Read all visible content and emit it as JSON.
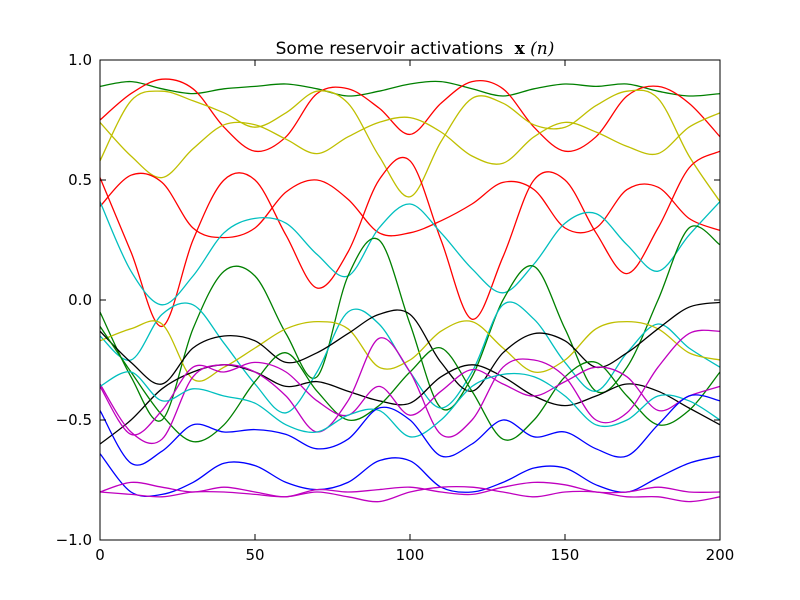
{
  "chart_data": {
    "type": "line",
    "title": "Some reservoir activations",
    "title_math": "x",
    "title_math_arg": "(n)",
    "xlabel": "",
    "ylabel": "",
    "xlim": [
      0,
      200
    ],
    "ylim": [
      -1.0,
      1.0
    ],
    "xticks": [
      0,
      50,
      100,
      150,
      200
    ],
    "yticks": [
      -1.0,
      -0.5,
      0.0,
      0.5,
      1.0
    ],
    "xtick_labels": [
      "0",
      "50",
      "100",
      "150",
      "200"
    ],
    "ytick_labels": [
      "−1.0",
      "−0.5",
      "0.0",
      "0.5",
      "1.0"
    ],
    "grid": false,
    "legend": "none",
    "series": [
      {
        "color": "#008000",
        "x": [
          0,
          10,
          20,
          30,
          40,
          50,
          60,
          70,
          80,
          90,
          100,
          110,
          120,
          130,
          140,
          150,
          160,
          170,
          180,
          190,
          200
        ],
        "y": [
          0.89,
          0.91,
          0.88,
          0.86,
          0.88,
          0.89,
          0.9,
          0.88,
          0.85,
          0.87,
          0.9,
          0.91,
          0.88,
          0.85,
          0.88,
          0.9,
          0.89,
          0.9,
          0.87,
          0.85,
          0.86
        ]
      },
      {
        "color": "#ff0000",
        "x": [
          0,
          10,
          20,
          30,
          40,
          50,
          60,
          70,
          80,
          90,
          100,
          110,
          120,
          130,
          140,
          150,
          160,
          170,
          180,
          190,
          200
        ],
        "y": [
          0.75,
          0.86,
          0.92,
          0.88,
          0.72,
          0.62,
          0.68,
          0.86,
          0.88,
          0.8,
          0.69,
          0.82,
          0.91,
          0.88,
          0.72,
          0.62,
          0.68,
          0.85,
          0.89,
          0.82,
          0.68
        ]
      },
      {
        "color": "#bfbf00",
        "x": [
          0,
          10,
          20,
          30,
          40,
          50,
          60,
          70,
          80,
          90,
          100,
          110,
          120,
          130,
          140,
          150,
          160,
          170,
          180,
          190,
          200
        ],
        "y": [
          0.58,
          0.83,
          0.87,
          0.83,
          0.78,
          0.72,
          0.78,
          0.87,
          0.82,
          0.6,
          0.43,
          0.66,
          0.84,
          0.82,
          0.73,
          0.72,
          0.81,
          0.87,
          0.84,
          0.6,
          0.41
        ]
      },
      {
        "color": "#bfbf00",
        "x": [
          0,
          10,
          20,
          30,
          40,
          50,
          60,
          70,
          80,
          90,
          100,
          110,
          120,
          130,
          140,
          150,
          160,
          170,
          180,
          190,
          200
        ],
        "y": [
          0.74,
          0.6,
          0.51,
          0.63,
          0.73,
          0.73,
          0.67,
          0.61,
          0.68,
          0.74,
          0.76,
          0.7,
          0.6,
          0.57,
          0.68,
          0.74,
          0.7,
          0.64,
          0.61,
          0.72,
          0.78
        ]
      },
      {
        "color": "#ff0000",
        "x": [
          0,
          10,
          20,
          30,
          40,
          50,
          60,
          70,
          80,
          90,
          100,
          110,
          120,
          130,
          140,
          150,
          160,
          170,
          180,
          190,
          200
        ],
        "y": [
          0.39,
          0.52,
          0.49,
          0.3,
          0.26,
          0.3,
          0.45,
          0.5,
          0.42,
          0.28,
          0.28,
          0.33,
          0.4,
          0.49,
          0.46,
          0.3,
          0.3,
          0.46,
          0.47,
          0.34,
          0.29
        ]
      },
      {
        "color": "#ff0000",
        "x": [
          0,
          10,
          20,
          30,
          40,
          50,
          60,
          70,
          80,
          90,
          100,
          110,
          120,
          130,
          140,
          150,
          160,
          170,
          180,
          190,
          200
        ],
        "y": [
          0.51,
          0.2,
          -0.11,
          0.25,
          0.5,
          0.5,
          0.27,
          0.05,
          0.2,
          0.5,
          0.58,
          0.25,
          -0.08,
          0.18,
          0.5,
          0.5,
          0.28,
          0.11,
          0.3,
          0.55,
          0.62
        ]
      },
      {
        "color": "#00bfbf",
        "x": [
          0,
          10,
          20,
          30,
          40,
          50,
          60,
          70,
          80,
          90,
          100,
          110,
          120,
          130,
          140,
          150,
          160,
          170,
          180,
          190,
          200
        ],
        "y": [
          0.41,
          0.12,
          -0.02,
          0.1,
          0.28,
          0.34,
          0.32,
          0.19,
          0.1,
          0.3,
          0.4,
          0.28,
          0.13,
          0.03,
          0.15,
          0.32,
          0.36,
          0.23,
          0.12,
          0.27,
          0.41
        ]
      },
      {
        "color": "#008000",
        "x": [
          0,
          10,
          20,
          30,
          40,
          50,
          60,
          70,
          80,
          90,
          100,
          110,
          120,
          130,
          140,
          150,
          160,
          170,
          180,
          190,
          200
        ],
        "y": [
          -0.05,
          -0.32,
          -0.5,
          -0.12,
          0.12,
          0.1,
          -0.14,
          -0.32,
          0.1,
          0.25,
          -0.1,
          -0.45,
          -0.32,
          0.0,
          0.14,
          -0.12,
          -0.38,
          -0.28,
          0.0,
          0.3,
          0.23
        ]
      },
      {
        "color": "#00bfbf",
        "x": [
          0,
          10,
          20,
          30,
          40,
          50,
          60,
          70,
          80,
          90,
          100,
          110,
          120,
          130,
          140,
          150,
          160,
          170,
          180,
          190,
          200
        ],
        "y": [
          -0.15,
          -0.25,
          -0.06,
          -0.02,
          -0.18,
          -0.35,
          -0.47,
          -0.3,
          -0.05,
          -0.1,
          -0.3,
          -0.45,
          -0.3,
          -0.02,
          -0.08,
          -0.26,
          -0.38,
          -0.22,
          -0.1,
          -0.2,
          -0.28
        ]
      },
      {
        "color": "#bfbf00",
        "x": [
          0,
          10,
          20,
          30,
          40,
          50,
          60,
          70,
          80,
          90,
          100,
          110,
          120,
          130,
          140,
          150,
          160,
          170,
          180,
          190,
          200
        ],
        "y": [
          -0.17,
          -0.12,
          -0.1,
          -0.33,
          -0.28,
          -0.2,
          -0.12,
          -0.09,
          -0.12,
          -0.28,
          -0.25,
          -0.13,
          -0.09,
          -0.2,
          -0.3,
          -0.25,
          -0.12,
          -0.09,
          -0.12,
          -0.22,
          -0.25
        ]
      },
      {
        "color": "#000000",
        "x": [
          0,
          10,
          20,
          30,
          40,
          50,
          60,
          70,
          80,
          90,
          100,
          110,
          120,
          130,
          140,
          150,
          160,
          170,
          180,
          190,
          200
        ],
        "y": [
          -0.13,
          -0.26,
          -0.35,
          -0.2,
          -0.15,
          -0.17,
          -0.26,
          -0.22,
          -0.14,
          -0.06,
          -0.06,
          -0.26,
          -0.38,
          -0.22,
          -0.14,
          -0.17,
          -0.28,
          -0.22,
          -0.12,
          -0.03,
          -0.01
        ]
      },
      {
        "color": "#000000",
        "x": [
          0,
          10,
          20,
          30,
          40,
          50,
          60,
          70,
          80,
          90,
          100,
          110,
          120,
          130,
          140,
          150,
          160,
          170,
          180,
          190,
          200
        ],
        "y": [
          -0.6,
          -0.5,
          -0.37,
          -0.3,
          -0.27,
          -0.3,
          -0.36,
          -0.34,
          -0.38,
          -0.42,
          -0.43,
          -0.32,
          -0.27,
          -0.32,
          -0.4,
          -0.44,
          -0.4,
          -0.35,
          -0.38,
          -0.45,
          -0.52
        ]
      },
      {
        "color": "#008000",
        "x": [
          0,
          10,
          20,
          30,
          40,
          50,
          60,
          70,
          80,
          90,
          100,
          110,
          120,
          130,
          140,
          150,
          160,
          170,
          180,
          190,
          200
        ],
        "y": [
          -0.11,
          -0.3,
          -0.48,
          -0.59,
          -0.52,
          -0.34,
          -0.22,
          -0.38,
          -0.5,
          -0.44,
          -0.3,
          -0.2,
          -0.38,
          -0.58,
          -0.5,
          -0.32,
          -0.26,
          -0.4,
          -0.52,
          -0.46,
          -0.3
        ]
      },
      {
        "color": "#bf00bf",
        "x": [
          0,
          10,
          20,
          30,
          40,
          50,
          60,
          70,
          80,
          90,
          100,
          110,
          120,
          130,
          140,
          150,
          160,
          170,
          180,
          190,
          200
        ],
        "y": [
          -0.35,
          -0.55,
          -0.58,
          -0.32,
          -0.27,
          -0.3,
          -0.4,
          -0.55,
          -0.42,
          -0.16,
          -0.3,
          -0.56,
          -0.5,
          -0.28,
          -0.25,
          -0.32,
          -0.5,
          -0.47,
          -0.28,
          -0.14,
          -0.13
        ]
      },
      {
        "color": "#bf00bf",
        "x": [
          0,
          10,
          20,
          30,
          40,
          50,
          60,
          70,
          80,
          90,
          100,
          110,
          120,
          130,
          140,
          150,
          160,
          170,
          180,
          190,
          200
        ],
        "y": [
          -0.36,
          -0.56,
          -0.46,
          -0.28,
          -0.3,
          -0.26,
          -0.3,
          -0.42,
          -0.48,
          -0.36,
          -0.48,
          -0.38,
          -0.29,
          -0.35,
          -0.4,
          -0.34,
          -0.28,
          -0.32,
          -0.46,
          -0.4,
          -0.36
        ]
      },
      {
        "color": "#00bfbf",
        "x": [
          0,
          10,
          20,
          30,
          40,
          50,
          60,
          70,
          80,
          90,
          100,
          110,
          120,
          130,
          140,
          150,
          160,
          170,
          180,
          190,
          200
        ],
        "y": [
          -0.36,
          -0.3,
          -0.42,
          -0.37,
          -0.4,
          -0.43,
          -0.52,
          -0.55,
          -0.48,
          -0.46,
          -0.57,
          -0.5,
          -0.36,
          -0.31,
          -0.32,
          -0.4,
          -0.52,
          -0.5,
          -0.4,
          -0.42,
          -0.5
        ]
      },
      {
        "color": "#0000ff",
        "x": [
          0,
          10,
          20,
          30,
          40,
          50,
          60,
          70,
          80,
          90,
          100,
          110,
          120,
          130,
          140,
          150,
          160,
          170,
          180,
          190,
          200
        ],
        "y": [
          -0.46,
          -0.68,
          -0.63,
          -0.52,
          -0.55,
          -0.54,
          -0.56,
          -0.62,
          -0.58,
          -0.45,
          -0.5,
          -0.65,
          -0.6,
          -0.5,
          -0.57,
          -0.55,
          -0.62,
          -0.65,
          -0.52,
          -0.4,
          -0.42
        ]
      },
      {
        "color": "#0000ff",
        "x": [
          0,
          10,
          20,
          30,
          40,
          50,
          60,
          70,
          80,
          90,
          100,
          110,
          120,
          130,
          140,
          150,
          160,
          170,
          180,
          190,
          200
        ],
        "y": [
          -0.64,
          -0.8,
          -0.81,
          -0.76,
          -0.68,
          -0.69,
          -0.76,
          -0.79,
          -0.76,
          -0.67,
          -0.67,
          -0.78,
          -0.8,
          -0.76,
          -0.7,
          -0.7,
          -0.77,
          -0.8,
          -0.74,
          -0.68,
          -0.65
        ]
      },
      {
        "color": "#bf00bf",
        "x": [
          0,
          10,
          20,
          30,
          40,
          50,
          60,
          70,
          80,
          90,
          100,
          110,
          120,
          130,
          140,
          150,
          160,
          170,
          180,
          190,
          200
        ],
        "y": [
          -0.8,
          -0.76,
          -0.78,
          -0.8,
          -0.78,
          -0.8,
          -0.82,
          -0.79,
          -0.8,
          -0.79,
          -0.78,
          -0.8,
          -0.81,
          -0.78,
          -0.76,
          -0.77,
          -0.8,
          -0.8,
          -0.78,
          -0.8,
          -0.8
        ]
      },
      {
        "color": "#bf00bf",
        "x": [
          0,
          10,
          20,
          30,
          40,
          50,
          60,
          70,
          80,
          90,
          100,
          110,
          120,
          130,
          140,
          150,
          160,
          170,
          180,
          190,
          200
        ],
        "y": [
          -0.8,
          -0.81,
          -0.82,
          -0.8,
          -0.8,
          -0.81,
          -0.82,
          -0.8,
          -0.82,
          -0.84,
          -0.8,
          -0.78,
          -0.78,
          -0.8,
          -0.82,
          -0.8,
          -0.8,
          -0.82,
          -0.82,
          -0.84,
          -0.82
        ]
      }
    ]
  }
}
